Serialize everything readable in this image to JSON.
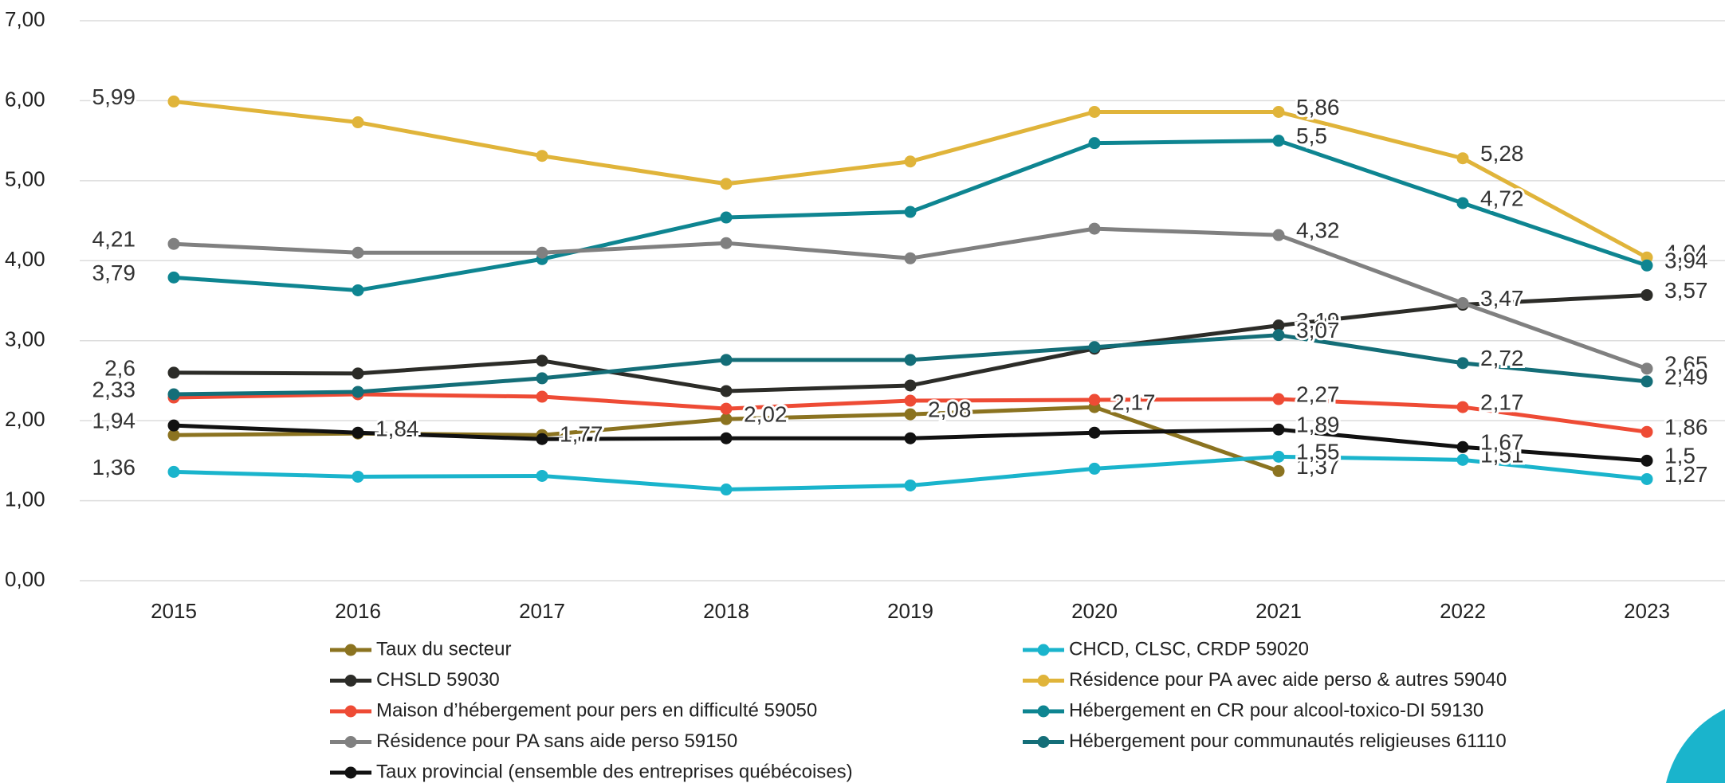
{
  "chart_data": {
    "type": "line",
    "categories": [
      "2015",
      "2016",
      "2017",
      "2018",
      "2019",
      "2020",
      "2021",
      "2022",
      "2023"
    ],
    "ylim": [
      0,
      7
    ],
    "yticks": [
      {
        "value": 0,
        "label": "0,00"
      },
      {
        "value": 1,
        "label": "1,00"
      },
      {
        "value": 2,
        "label": "2,00"
      },
      {
        "value": 3,
        "label": "3,00"
      },
      {
        "value": 4,
        "label": "4,00"
      },
      {
        "value": 5,
        "label": "5,00"
      },
      {
        "value": 6,
        "label": "6,00"
      },
      {
        "value": 7,
        "label": "7,00"
      }
    ],
    "grid": true,
    "legend": "bottom",
    "series": [
      {
        "name": "Taux du secteur",
        "color": "#8b7320",
        "values": [
          1.82,
          1.84,
          1.82,
          2.02,
          2.08,
          2.17,
          1.37,
          null,
          null
        ],
        "value_labels": [
          null,
          "1,84",
          null,
          "2,02",
          "2,08",
          "2,17",
          "1,37",
          null,
          null
        ]
      },
      {
        "name": "CHCD, CLSC, CRDP 59020",
        "color": "#1ab4cc",
        "values": [
          1.36,
          1.3,
          1.31,
          1.14,
          1.19,
          1.4,
          1.55,
          1.51,
          1.27
        ],
        "value_labels": [
          "1,36",
          null,
          null,
          null,
          null,
          null,
          "1,55",
          "1,51",
          "1,27"
        ]
      },
      {
        "name": "CHSLD 59030",
        "color": "#2c2c28",
        "values": [
          2.6,
          2.59,
          2.75,
          2.37,
          2.44,
          2.9,
          3.19,
          3.45,
          3.57
        ],
        "value_labels": [
          "2,6",
          null,
          null,
          null,
          null,
          null,
          "3,19",
          null,
          "3,57"
        ]
      },
      {
        "name": "Résidence pour PA avec aide perso & autres 59040",
        "color": "#e0b43a",
        "values": [
          5.99,
          5.73,
          5.31,
          4.96,
          5.24,
          5.86,
          5.86,
          5.28,
          4.04
        ],
        "value_labels": [
          "5,99",
          null,
          null,
          null,
          null,
          null,
          "5,86",
          "5,28",
          "4,04"
        ]
      },
      {
        "name": "Maison d’hébergement pour pers en difficulté 59050",
        "color": "#ee4b35",
        "values": [
          2.29,
          2.33,
          2.3,
          2.15,
          2.25,
          2.26,
          2.27,
          2.17,
          1.86
        ],
        "value_labels": [
          null,
          null,
          null,
          null,
          null,
          null,
          "2,27",
          "2,17",
          "1,86"
        ]
      },
      {
        "name": "Hébergement en CR pour alcool-toxico-DI 59130",
        "color": "#0e8591",
        "values": [
          3.79,
          3.63,
          4.02,
          4.54,
          4.61,
          5.47,
          5.5,
          4.72,
          3.94
        ],
        "value_labels": [
          "3,79",
          null,
          null,
          null,
          null,
          null,
          "5,5",
          "4,72",
          "3,94"
        ]
      },
      {
        "name": "Résidence pour PA sans aide perso 59150",
        "color": "#808080",
        "values": [
          4.21,
          4.1,
          4.1,
          4.22,
          4.03,
          4.4,
          4.32,
          3.47,
          2.65
        ],
        "value_labels": [
          "4,21",
          null,
          null,
          null,
          null,
          null,
          "4,32",
          "3,47",
          "2,65"
        ]
      },
      {
        "name": "Hébergement pour communautés religieuses 61110",
        "color": "#146e78",
        "values": [
          2.33,
          2.36,
          2.53,
          2.76,
          2.76,
          2.92,
          3.07,
          2.72,
          2.49
        ],
        "value_labels": [
          "2,33",
          null,
          null,
          null,
          null,
          null,
          "3,07",
          "2,72",
          "2,49"
        ]
      },
      {
        "name": "Taux provincial (ensemble des entreprises québécoises)",
        "color": "#111111",
        "values": [
          1.94,
          1.85,
          1.77,
          1.78,
          1.78,
          1.85,
          1.89,
          1.67,
          1.5
        ],
        "value_labels": [
          "1,94",
          null,
          "1,77",
          null,
          null,
          null,
          "1,89",
          "1,67",
          "1,5"
        ]
      }
    ]
  }
}
